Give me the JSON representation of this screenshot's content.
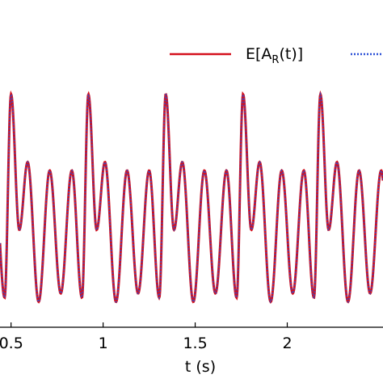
{
  "chart_data": {
    "type": "line",
    "xlabel": "t (s)",
    "ylabel": "",
    "xlim": [
      0.44,
      2.52
    ],
    "ylim": [
      -1.35,
      1.75
    ],
    "grid": false,
    "legend_placement": "top-right",
    "x_ticks": [
      {
        "value": 0.5,
        "label": "0.5"
      },
      {
        "value": 1,
        "label": "1"
      },
      {
        "value": 1.5,
        "label": "1.5"
      },
      {
        "value": 2,
        "label": "2"
      }
    ],
    "series": [
      {
        "name_parts": {
          "base": "E[A",
          "sub": "R",
          "tail": "(t)]"
        },
        "color": "#d4101c",
        "style": "solid",
        "x_start": 0.44,
        "x_end": 2.52,
        "repeat_period": 0.42,
        "major_peak_times": [
          0.5,
          0.92,
          1.34,
          1.76,
          2.18
        ],
        "extrema_in_one_period": [
          {
            "t": 0.5,
            "y": 1.4
          },
          {
            "t": 0.545,
            "y": -0.2
          },
          {
            "t": 0.59,
            "y": 0.6
          },
          {
            "t": 0.65,
            "y": -1.05
          },
          {
            "t": 0.71,
            "y": 0.5
          },
          {
            "t": 0.77,
            "y": -0.95
          },
          {
            "t": 0.83,
            "y": 0.5
          },
          {
            "t": 0.885,
            "y": -1.0
          },
          {
            "t": 0.92,
            "y": 1.4
          }
        ]
      },
      {
        "name_parts": {
          "base": "",
          "sub": "",
          "tail": ""
        },
        "color": "#2a4fd6",
        "style": "dotted",
        "note_same_as_first_series": true
      }
    ]
  }
}
